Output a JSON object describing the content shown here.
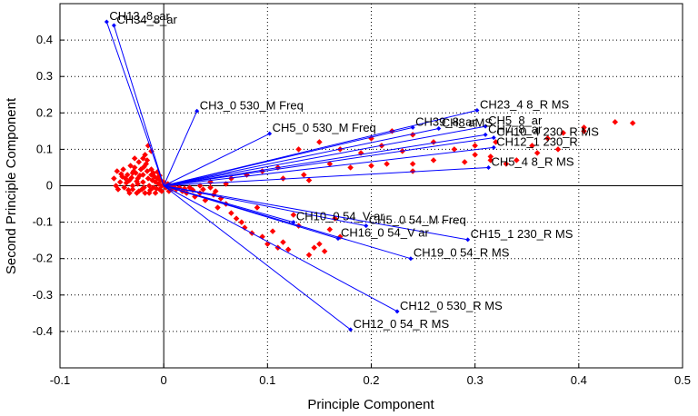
{
  "chart_data": {
    "type": "scatter",
    "title": "",
    "xlabel": "Principle Component",
    "ylabel": "Second Principle Component",
    "xlim": [
      -0.1,
      0.5
    ],
    "ylim": [
      -0.5,
      0.5
    ],
    "xticks": [
      "-0.1",
      "0",
      "0.1",
      "0.2",
      "0.3",
      "0.4",
      "0.5"
    ],
    "yticks": [
      "0.4",
      "0.3",
      "0.2",
      "0.1",
      "0",
      "-0.1",
      "-0.2",
      "-0.3",
      "-0.4"
    ],
    "grid": true,
    "origin_axes": true,
    "colors": {
      "vectors": "#0000ff",
      "points": "#ff0000",
      "grid": "#000000"
    },
    "vectors": [
      {
        "label": "CH13_8_ar",
        "x": -0.055,
        "y": 0.45
      },
      {
        "label": "CH34_8_ar",
        "x": -0.048,
        "y": 0.44
      },
      {
        "label": "CH3_0 530_M Freq",
        "x": 0.032,
        "y": 0.205
      },
      {
        "label": "CH5_0 530_M Freq",
        "x": 0.102,
        "y": 0.143
      },
      {
        "label": "CH23_4 8_R MS",
        "x": 0.302,
        "y": 0.207
      },
      {
        "label": "CH39_8_ar",
        "x": 0.24,
        "y": 0.16
      },
      {
        "label": "CH8 aMS",
        "x": 0.265,
        "y": 0.157
      },
      {
        "label": "CH5_8_ar",
        "x": 0.31,
        "y": 0.163
      },
      {
        "label": "CH7_8_ar",
        "x": 0.31,
        "y": 0.14
      },
      {
        "label": "CH10_4 230_R MS",
        "x": 0.318,
        "y": 0.132
      },
      {
        "label": "CH12_1 230_R",
        "x": 0.318,
        "y": 0.105
      },
      {
        "label": "CH5_4 8_R MS",
        "x": 0.313,
        "y": 0.05
      },
      {
        "label": "CH10_0 54_V ar",
        "x": 0.125,
        "y": -0.1
      },
      {
        "label": "CH5_0 54_M Freq",
        "x": 0.195,
        "y": -0.11
      },
      {
        "label": "CH16_0 54_V ar",
        "x": 0.168,
        "y": -0.145
      },
      {
        "label": "CH15_1 230_R MS",
        "x": 0.293,
        "y": -0.148
      },
      {
        "label": "CH19_0 54_R MS",
        "x": 0.238,
        "y": -0.2
      },
      {
        "label": "CH12_0 530_R MS",
        "x": 0.225,
        "y": -0.345
      },
      {
        "label": "CH12_0 54_R MS",
        "x": 0.18,
        "y": -0.395
      }
    ],
    "points": [
      [
        -0.045,
        0.04
      ],
      [
        -0.04,
        0.025
      ],
      [
        -0.042,
        0.01
      ],
      [
        -0.038,
        -0.005
      ],
      [
        -0.035,
        0.03
      ],
      [
        -0.033,
        0.015
      ],
      [
        -0.03,
        0.0
      ],
      [
        -0.03,
        -0.01
      ],
      [
        -0.028,
        0.05
      ],
      [
        -0.027,
        0.035
      ],
      [
        -0.025,
        0.02
      ],
      [
        -0.025,
        0.005
      ],
      [
        -0.024,
        -0.015
      ],
      [
        -0.022,
        0.045
      ],
      [
        -0.02,
        0.03
      ],
      [
        -0.02,
        0.01
      ],
      [
        -0.019,
        -0.005
      ],
      [
        -0.018,
        -0.02
      ],
      [
        -0.017,
        0.06
      ],
      [
        -0.016,
        0.04
      ],
      [
        -0.015,
        0.02
      ],
      [
        -0.014,
        0.0
      ],
      [
        -0.013,
        -0.012
      ],
      [
        -0.012,
        0.03
      ],
      [
        -0.011,
        0.015
      ],
      [
        -0.01,
        -0.005
      ],
      [
        -0.009,
        0.025
      ],
      [
        -0.008,
        0.01
      ],
      [
        -0.007,
        -0.008
      ],
      [
        -0.006,
        0.02
      ],
      [
        -0.005,
        0.005
      ],
      [
        -0.004,
        -0.01
      ],
      [
        -0.003,
        0.015
      ],
      [
        -0.002,
        0.0
      ],
      [
        0.0,
        0.01
      ],
      [
        0.002,
        -0.005
      ],
      [
        0.004,
        0.005
      ],
      [
        0.005,
        -0.015
      ],
      [
        0.007,
        0.0
      ],
      [
        0.008,
        -0.008
      ],
      [
        -0.036,
        0.008
      ],
      [
        -0.034,
        -0.012
      ],
      [
        -0.031,
        0.022
      ],
      [
        -0.029,
        0.04
      ],
      [
        -0.026,
        -0.02
      ],
      [
        -0.023,
        0.028
      ],
      [
        -0.021,
        -0.01
      ],
      [
        -0.019,
        0.052
      ],
      [
        -0.016,
        0.07
      ],
      [
        -0.014,
        -0.02
      ],
      [
        -0.012,
        0.045
      ],
      [
        -0.01,
        0.035
      ],
      [
        -0.008,
        -0.02
      ],
      [
        -0.006,
        0.038
      ],
      [
        -0.004,
        0.028
      ],
      [
        -0.002,
        -0.015
      ],
      [
        -0.048,
        0.02
      ],
      [
        -0.046,
        0.0
      ],
      [
        -0.044,
        -0.01
      ],
      [
        -0.041,
        0.032
      ],
      [
        -0.039,
        0.045
      ],
      [
        -0.037,
        0.02
      ],
      [
        -0.032,
        0.055
      ],
      [
        -0.024,
        0.065
      ],
      [
        -0.018,
        0.085
      ],
      [
        -0.015,
        0.11
      ],
      [
        -0.012,
        0.095
      ],
      [
        -0.02,
        0.075
      ],
      [
        -0.028,
        0.075
      ],
      [
        -0.033,
        -0.02
      ],
      [
        -0.03,
        0.035
      ],
      [
        -0.026,
        0.012
      ],
      [
        0.01,
        0.0
      ],
      [
        0.012,
        -0.01
      ],
      [
        0.015,
        -0.005
      ],
      [
        0.018,
        -0.015
      ],
      [
        0.02,
        -0.008
      ],
      [
        0.022,
        -0.02
      ],
      [
        0.025,
        -0.005
      ],
      [
        0.028,
        -0.012
      ],
      [
        0.03,
        -0.03
      ],
      [
        0.035,
        -0.02
      ],
      [
        0.038,
        -0.01
      ],
      [
        0.04,
        -0.04
      ],
      [
        0.045,
        -0.005
      ],
      [
        0.048,
        -0.025
      ],
      [
        0.052,
        -0.06
      ],
      [
        0.055,
        -0.035
      ],
      [
        0.06,
        -0.05
      ],
      [
        0.065,
        -0.075
      ],
      [
        0.07,
        -0.09
      ],
      [
        0.075,
        -0.1
      ],
      [
        0.078,
        -0.115
      ],
      [
        0.085,
        -0.13
      ],
      [
        0.09,
        -0.06
      ],
      [
        0.095,
        -0.14
      ],
      [
        0.1,
        -0.16
      ],
      [
        0.105,
        -0.125
      ],
      [
        0.11,
        -0.17
      ],
      [
        0.115,
        -0.155
      ],
      [
        0.12,
        -0.175
      ],
      [
        0.125,
        -0.08
      ],
      [
        0.13,
        -0.11
      ],
      [
        0.14,
        -0.19
      ],
      [
        0.145,
        -0.17
      ],
      [
        0.15,
        -0.16
      ],
      [
        0.155,
        -0.18
      ],
      [
        0.16,
        -0.12
      ],
      [
        0.165,
        -0.09
      ],
      [
        0.17,
        -0.14
      ],
      [
        0.035,
        0.0
      ],
      [
        0.045,
        0.01
      ],
      [
        0.05,
        -0.015
      ],
      [
        0.06,
        0.005
      ],
      [
        0.065,
        0.02
      ],
      [
        0.08,
        0.03
      ],
      [
        0.095,
        0.04
      ],
      [
        0.11,
        0.05
      ],
      [
        0.115,
        0.02
      ],
      [
        0.135,
        0.03
      ],
      [
        0.14,
        0.015
      ],
      [
        0.16,
        0.06
      ],
      [
        0.18,
        0.05
      ],
      [
        0.2,
        0.055
      ],
      [
        0.215,
        0.06
      ],
      [
        0.24,
        0.04
      ],
      [
        0.24,
        0.06
      ],
      [
        0.26,
        0.07
      ],
      [
        0.29,
        0.065
      ],
      [
        0.3,
        0.085
      ],
      [
        0.315,
        0.08
      ],
      [
        0.315,
        0.07
      ],
      [
        0.33,
        0.06
      ],
      [
        0.34,
        0.07
      ],
      [
        0.36,
        0.09
      ],
      [
        0.38,
        0.1
      ],
      [
        0.405,
        0.16
      ],
      [
        0.405,
        0.15
      ],
      [
        0.435,
        0.175
      ],
      [
        0.452,
        0.172
      ],
      [
        0.385,
        0.145
      ],
      [
        0.37,
        0.13
      ],
      [
        0.355,
        0.11
      ],
      [
        0.2,
        0.13
      ],
      [
        0.22,
        0.15
      ],
      [
        0.24,
        0.14
      ],
      [
        0.26,
        0.12
      ],
      [
        0.28,
        0.1
      ],
      [
        0.3,
        0.11
      ],
      [
        0.32,
        0.12
      ],
      [
        0.17,
        0.1
      ],
      [
        0.15,
        0.12
      ],
      [
        0.13,
        0.1
      ],
      [
        0.19,
        0.09
      ],
      [
        0.21,
        0.11
      ],
      [
        0.23,
        0.095
      ]
    ]
  }
}
